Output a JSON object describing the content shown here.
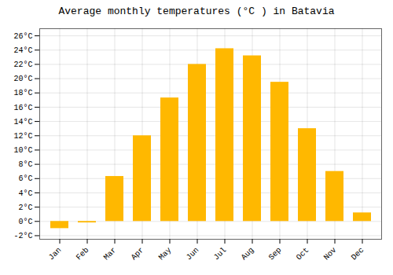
{
  "chart_data": {
    "type": "bar",
    "title": "Average monthly temperatures (°C ) in Batavia",
    "categories": [
      "Jan",
      "Feb",
      "Mar",
      "Apr",
      "May",
      "Jun",
      "Jul",
      "Aug",
      "Sep",
      "Oct",
      "Nov",
      "Dec"
    ],
    "values": [
      -1.0,
      -0.2,
      6.3,
      12.0,
      17.3,
      22.0,
      24.2,
      23.2,
      19.5,
      13.0,
      7.0,
      1.2
    ],
    "color": "#FFB800",
    "ylim": [
      -2.5,
      27
    ],
    "yticks": [
      {
        "value": -2,
        "label": "-2°C"
      },
      {
        "value": 0,
        "label": "0°C"
      },
      {
        "value": 2,
        "label": "2°C"
      },
      {
        "value": 4,
        "label": "4°C"
      },
      {
        "value": 6,
        "label": "6°C"
      },
      {
        "value": 8,
        "label": "8°C"
      },
      {
        "value": 10,
        "label": "10°C"
      },
      {
        "value": 12,
        "label": "12°C"
      },
      {
        "value": 14,
        "label": "14°C"
      },
      {
        "value": 16,
        "label": "16°C"
      },
      {
        "value": 18,
        "label": "18°C"
      },
      {
        "value": 20,
        "label": "20°C"
      },
      {
        "value": 22,
        "label": "22°C"
      },
      {
        "value": 24,
        "label": "24°C"
      },
      {
        "value": 26,
        "label": "26°C"
      }
    ],
    "grid": true
  }
}
